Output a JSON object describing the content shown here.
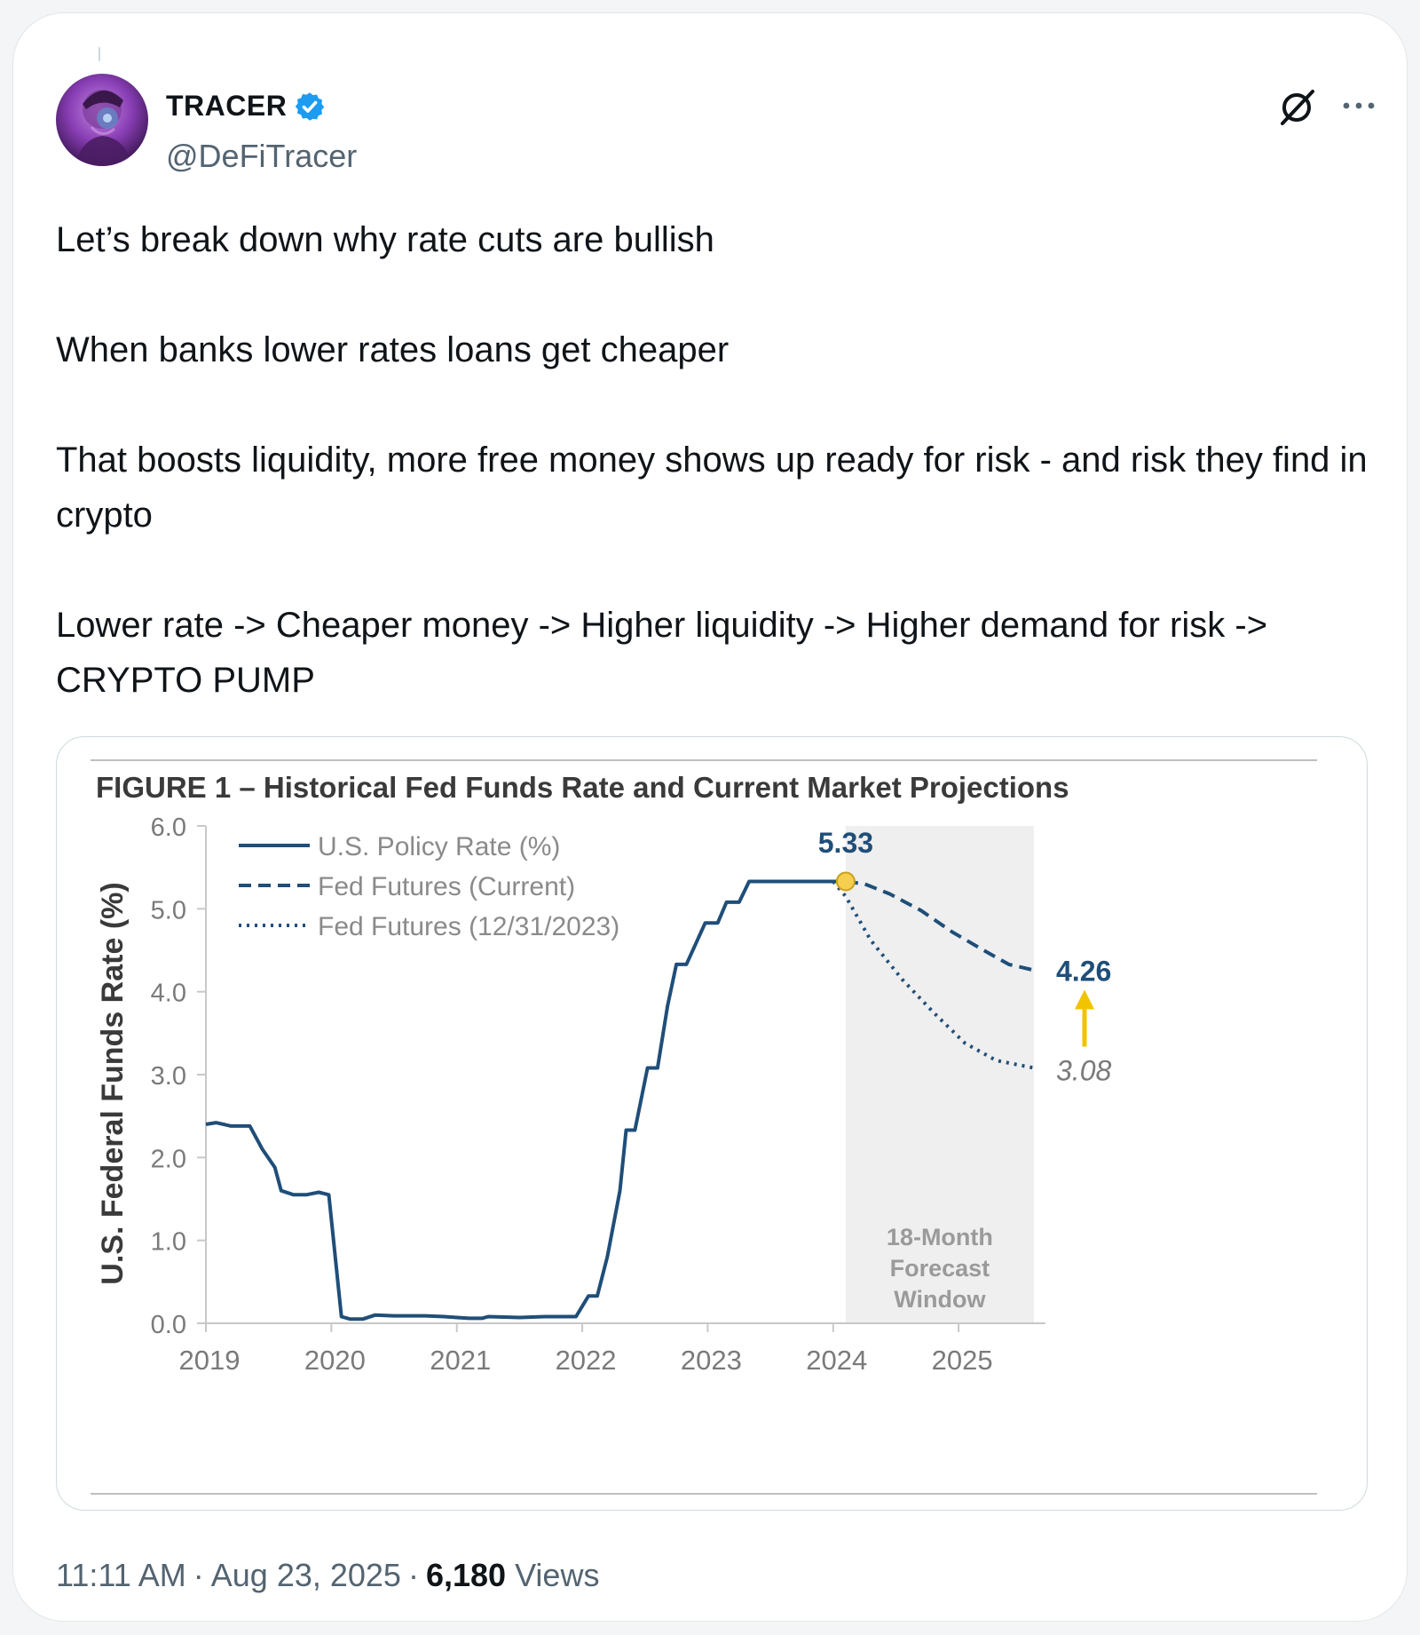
{
  "post": {
    "author": {
      "display_name": "TRACER",
      "handle": "@DeFiTracer",
      "verified": true,
      "avatar": "avatar-portrait"
    },
    "actions": {
      "grok_icon": "grok-slash-icon",
      "more_icon": "more-dots-icon"
    },
    "text": [
      "Let’s break down why rate cuts are bullish",
      "When banks lower rates loans get cheaper",
      "That boosts liquidity, more free money shows up ready for risk - and risk they find in crypto",
      "Lower rate -> Cheaper money -> Higher liquidity -> Higher demand for risk -> CRYPTO PUMP"
    ],
    "time": "11:11 AM",
    "date": "Aug 23, 2025",
    "views_count": "6,180",
    "views_label": "Views"
  },
  "colors": {
    "text": "#0f1419",
    "muted": "#536471",
    "verified": "#1d9bf0",
    "series": "#1f4e79",
    "highlight": "#f2c300",
    "forecast_band": "#efefef"
  },
  "chart_data": {
    "type": "line",
    "title": "FIGURE 1 – Historical Fed Funds Rate and Current Market Projections",
    "xlabel": "",
    "ylabel": "U.S. Federal Funds Rate (%)",
    "ylim": [
      0,
      6
    ],
    "xlim": [
      2019,
      2025.65
    ],
    "yticks": [
      "0.0",
      "1.0",
      "2.0",
      "3.0",
      "4.0",
      "5.0",
      "6.0"
    ],
    "xticks": [
      "2019",
      "2020",
      "2021",
      "2022",
      "2023",
      "2024",
      "2025"
    ],
    "legend_position": "top-left",
    "grid": false,
    "series": [
      {
        "name": "U.S. Policy Rate (%)",
        "style": "solid",
        "points": [
          [
            2019.0,
            2.4
          ],
          [
            2019.08,
            2.42
          ],
          [
            2019.2,
            2.38
          ],
          [
            2019.35,
            2.38
          ],
          [
            2019.45,
            2.1
          ],
          [
            2019.55,
            1.88
          ],
          [
            2019.6,
            1.6
          ],
          [
            2019.7,
            1.55
          ],
          [
            2019.8,
            1.55
          ],
          [
            2019.9,
            1.58
          ],
          [
            2019.98,
            1.55
          ],
          [
            2020.08,
            0.08
          ],
          [
            2020.15,
            0.05
          ],
          [
            2020.25,
            0.05
          ],
          [
            2020.35,
            0.1
          ],
          [
            2020.5,
            0.09
          ],
          [
            2020.75,
            0.09
          ],
          [
            2020.9,
            0.08
          ],
          [
            2021.0,
            0.07
          ],
          [
            2021.1,
            0.06
          ],
          [
            2021.2,
            0.06
          ],
          [
            2021.25,
            0.08
          ],
          [
            2021.5,
            0.07
          ],
          [
            2021.7,
            0.08
          ],
          [
            2021.95,
            0.08
          ],
          [
            2022.05,
            0.33
          ],
          [
            2022.12,
            0.33
          ],
          [
            2022.2,
            0.8
          ],
          [
            2022.3,
            1.6
          ],
          [
            2022.35,
            2.33
          ],
          [
            2022.42,
            2.33
          ],
          [
            2022.52,
            3.08
          ],
          [
            2022.6,
            3.08
          ],
          [
            2022.68,
            3.83
          ],
          [
            2022.75,
            4.33
          ],
          [
            2022.83,
            4.33
          ],
          [
            2022.98,
            4.83
          ],
          [
            2023.08,
            4.83
          ],
          [
            2023.15,
            5.08
          ],
          [
            2023.25,
            5.08
          ],
          [
            2023.33,
            5.33
          ],
          [
            2024.0,
            5.33
          ],
          [
            2024.1,
            5.33
          ]
        ]
      },
      {
        "name": "Fed Futures (Current)",
        "style": "dashed",
        "points": [
          [
            2024.1,
            5.33
          ],
          [
            2024.25,
            5.3
          ],
          [
            2024.45,
            5.18
          ],
          [
            2024.7,
            4.98
          ],
          [
            2024.95,
            4.72
          ],
          [
            2025.2,
            4.5
          ],
          [
            2025.4,
            4.33
          ],
          [
            2025.6,
            4.26
          ]
        ]
      },
      {
        "name": "Fed Futures (12/31/2023)",
        "style": "dotted",
        "points": [
          [
            2024.0,
            5.33
          ],
          [
            2024.1,
            5.15
          ],
          [
            2024.3,
            4.62
          ],
          [
            2024.55,
            4.15
          ],
          [
            2024.8,
            3.75
          ],
          [
            2025.05,
            3.38
          ],
          [
            2025.3,
            3.17
          ],
          [
            2025.6,
            3.08
          ]
        ]
      }
    ],
    "annotations": {
      "start_value": "5.33",
      "current_end_value": "4.26",
      "prior_end_value": "3.08",
      "forecast_window_lines": [
        "18-Month",
        "Forecast",
        "Window"
      ],
      "forecast_start": 2024.1,
      "forecast_end": 2025.6
    }
  }
}
